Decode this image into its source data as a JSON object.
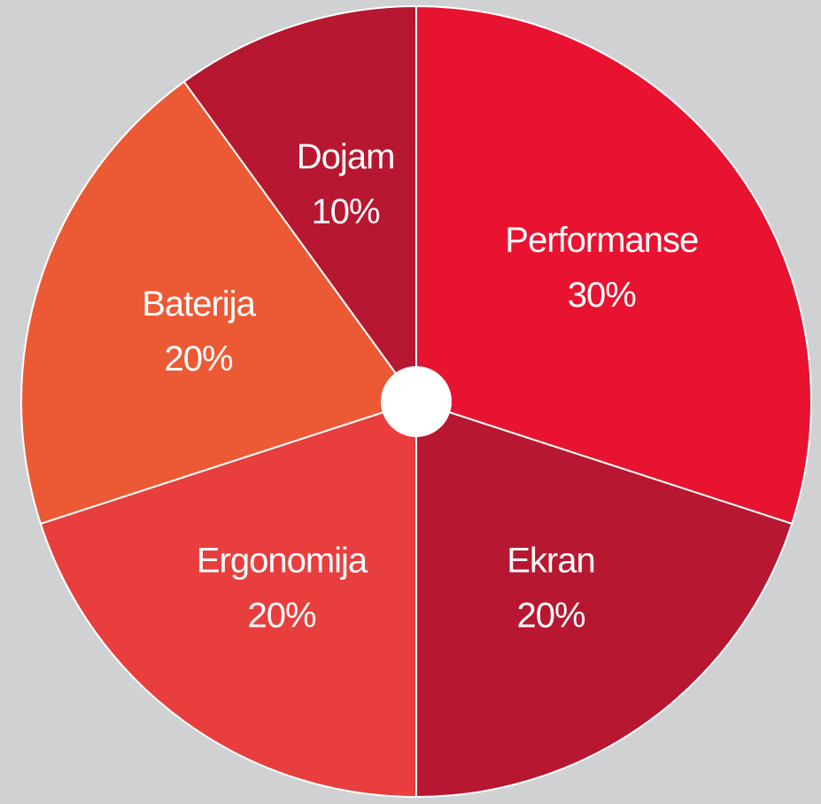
{
  "chart_data": {
    "type": "pie",
    "start": "top",
    "direction": "clockwise",
    "slices": [
      {
        "label": "Performanse",
        "value": 30,
        "value_text": "30%",
        "color": "#e81330"
      },
      {
        "label": "Ekran",
        "value": 20,
        "value_text": "20%",
        "color": "#b71730"
      },
      {
        "label": "Ergonomija",
        "value": 20,
        "value_text": "20%",
        "color": "#e93e3e"
      },
      {
        "label": "Baterija",
        "value": 20,
        "value_text": "20%",
        "color": "#ec5a35"
      },
      {
        "label": "Dojam",
        "value": 10,
        "value_text": "10%",
        "color": "#b71730"
      }
    ],
    "background_color": "#d0d1d3",
    "separator_color": "#ffffff",
    "center_hole_color": "#ffffff"
  }
}
